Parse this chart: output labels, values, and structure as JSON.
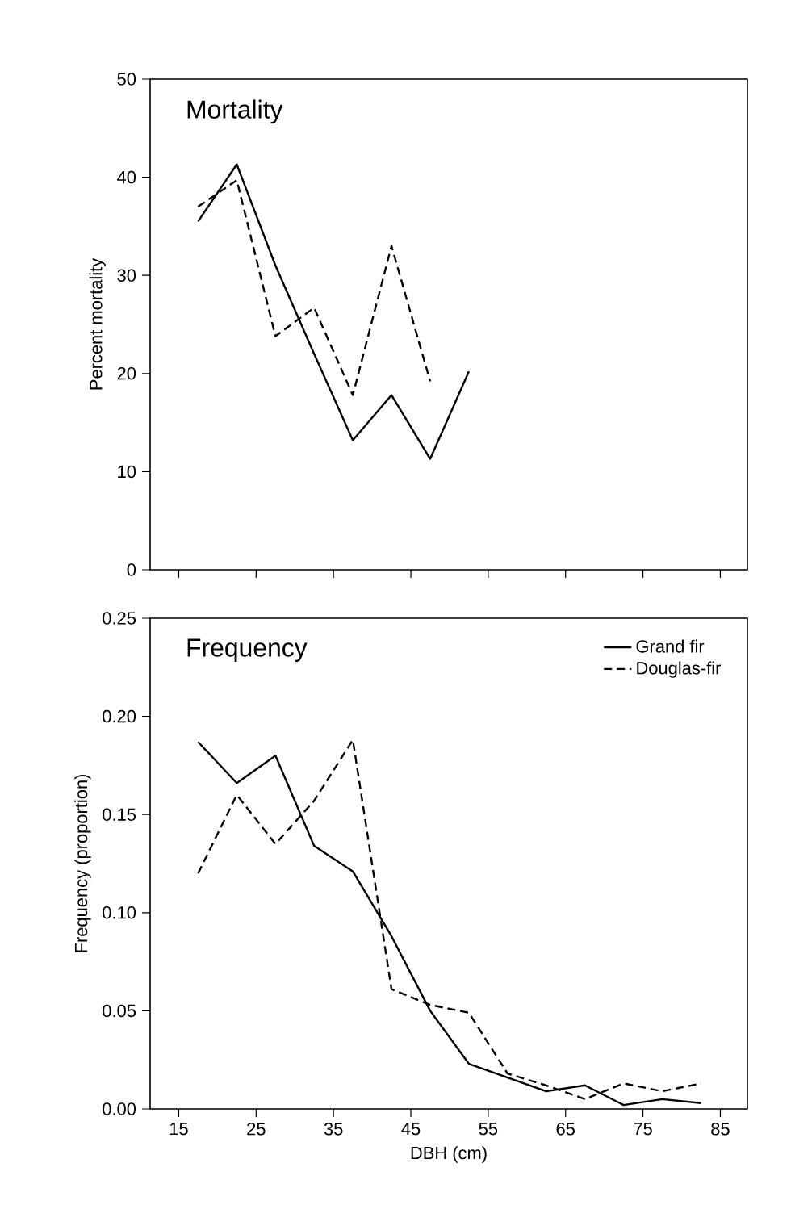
{
  "chart_data": [
    {
      "type": "line",
      "title": "Mortality",
      "ylabel": "Percent mortality",
      "xlim": [
        11.3,
        88.5
      ],
      "xticks": [
        15,
        25,
        35,
        45,
        55,
        65,
        75,
        85
      ],
      "ylim": [
        0,
        50
      ],
      "yticks": [
        0,
        10,
        20,
        30,
        40,
        50
      ],
      "tick_labels": "y",
      "legend": false,
      "series": [
        {
          "x": [
            17.5,
            22.5,
            27.5,
            32.5,
            37.5,
            42.5,
            47.5,
            52.5
          ],
          "values": [
            35.5,
            41.3,
            31,
            22,
            13.2,
            17.8,
            11.3,
            20.2
          ],
          "color": "#000000",
          "line_style": "solid"
        },
        {
          "x": [
            17.5,
            22.5,
            27.5,
            32.5,
            37.5,
            42.5,
            47.5
          ],
          "values": [
            37,
            39.7,
            23.8,
            26.7,
            17.8,
            33,
            19.2
          ],
          "color": "#000000",
          "line_style": "dashed"
        }
      ]
    },
    {
      "type": "line",
      "title": "Frequency",
      "xlabel": "DBH (cm)",
      "ylabel": "Frequency (proportion)",
      "xlim": [
        11.3,
        88.5
      ],
      "xticks": [
        15,
        25,
        35,
        45,
        55,
        65,
        75,
        85
      ],
      "ylim": [
        0,
        0.25
      ],
      "yticks": [
        {
          "value": 0,
          "label": "0.00"
        },
        {
          "value": 0.05,
          "label": "0.05"
        },
        {
          "value": 0.1,
          "label": "0.10"
        },
        {
          "value": 0.15,
          "label": "0.15"
        },
        {
          "value": 0.2,
          "label": "0.20"
        },
        {
          "value": 0.25,
          "label": "0.25"
        }
      ],
      "legend": "top right",
      "series": [
        {
          "name": "Grand fir",
          "x": [
            17.5,
            22.5,
            27.5,
            32.5,
            37.5,
            42.5,
            47.5,
            52.5,
            57.5,
            62.5,
            67.5,
            72.5,
            77.5,
            82.5
          ],
          "values": [
            0.187,
            0.166,
            0.18,
            0.134,
            0.121,
            0.088,
            0.05,
            0.023,
            0.016,
            0.009,
            0.012,
            0.002,
            0.005,
            0.003
          ],
          "color": "#000000",
          "line_style": "solid"
        },
        {
          "name": "Douglas-fir",
          "x": [
            17.5,
            22.5,
            27.5,
            32.5,
            37.5,
            42.5,
            47.5,
            52.5,
            57.5,
            62.5,
            67.5,
            72.5,
            77.5,
            82.5
          ],
          "values": [
            0.12,
            0.16,
            0.135,
            0.157,
            0.188,
            0.061,
            0.053,
            0.049,
            0.018,
            0.012,
            0.005,
            0.013,
            0.009,
            0.013
          ],
          "color": "#000000",
          "line_style": "dashed"
        }
      ]
    }
  ]
}
